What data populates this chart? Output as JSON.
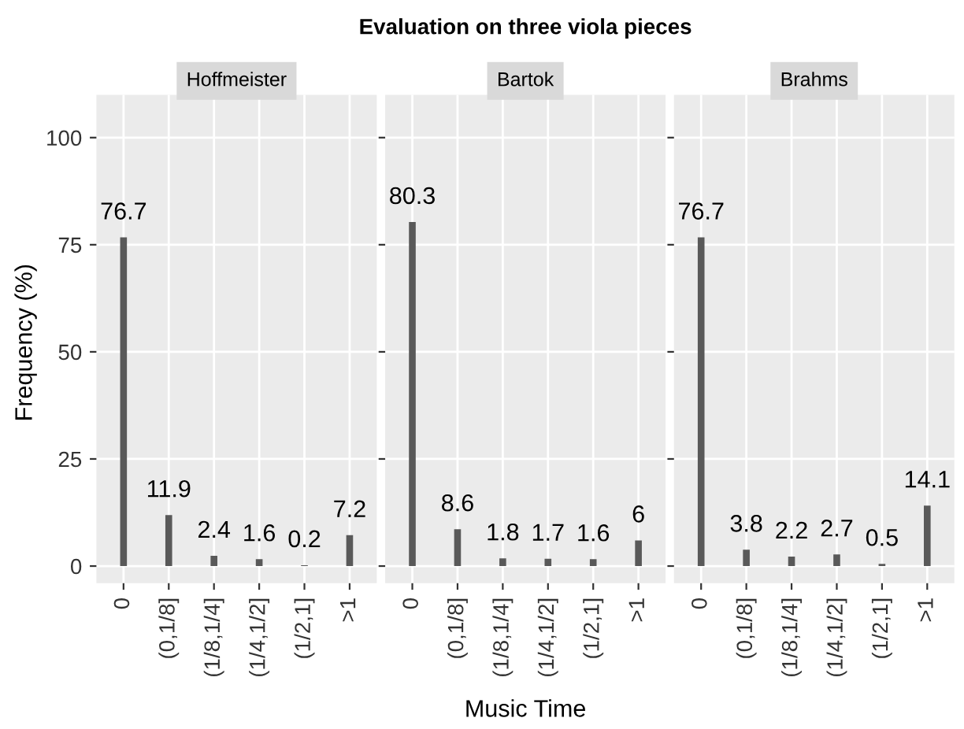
{
  "chart_data": [
    {
      "type": "bar",
      "title": "Hoffmeister",
      "annotations": [
        "Evaluation on three viola pieces"
      ],
      "ylabel": "Frequency (%)",
      "categories": [
        "0",
        "(0,1/8]",
        "(1/8,1/4]",
        "(1/4,1/2]",
        "(1/2,1]",
        ">1"
      ],
      "values": [
        76.7,
        11.9,
        2.4,
        1.6,
        0.2,
        7.2
      ],
      "color": "#595959",
      "ylim": [
        -4,
        110
      ],
      "yticks": [
        0,
        25,
        50,
        75,
        100
      ],
      "grid": true,
      "data_labels": true
    },
    {
      "type": "bar",
      "title": "Bartok",
      "xlabel": "Music Time",
      "categories": [
        "0",
        "(0,1/8]",
        "(1/8,1/4]",
        "(1/4,1/2]",
        "(1/2,1]",
        ">1"
      ],
      "values": [
        80.3,
        8.6,
        1.8,
        1.7,
        1.6,
        6
      ],
      "color": "#595959",
      "ylim": [
        -4,
        110
      ],
      "yticks": [
        0,
        25,
        50,
        75,
        100
      ],
      "grid": true,
      "data_labels": true,
      "tick_labels": "x"
    },
    {
      "type": "bar",
      "title": "Brahms",
      "categories": [
        "0",
        "(0,1/8]",
        "(1/8,1/4]",
        "(1/4,1/2]",
        "(1/2,1]",
        ">1"
      ],
      "values": [
        76.7,
        3.8,
        2.2,
        2.7,
        0.5,
        14.1
      ],
      "color": "#595959",
      "ylim": [
        -4,
        110
      ],
      "yticks": [
        0,
        25,
        50,
        75,
        100
      ],
      "grid": true,
      "data_labels": true,
      "tick_labels": "x"
    }
  ]
}
